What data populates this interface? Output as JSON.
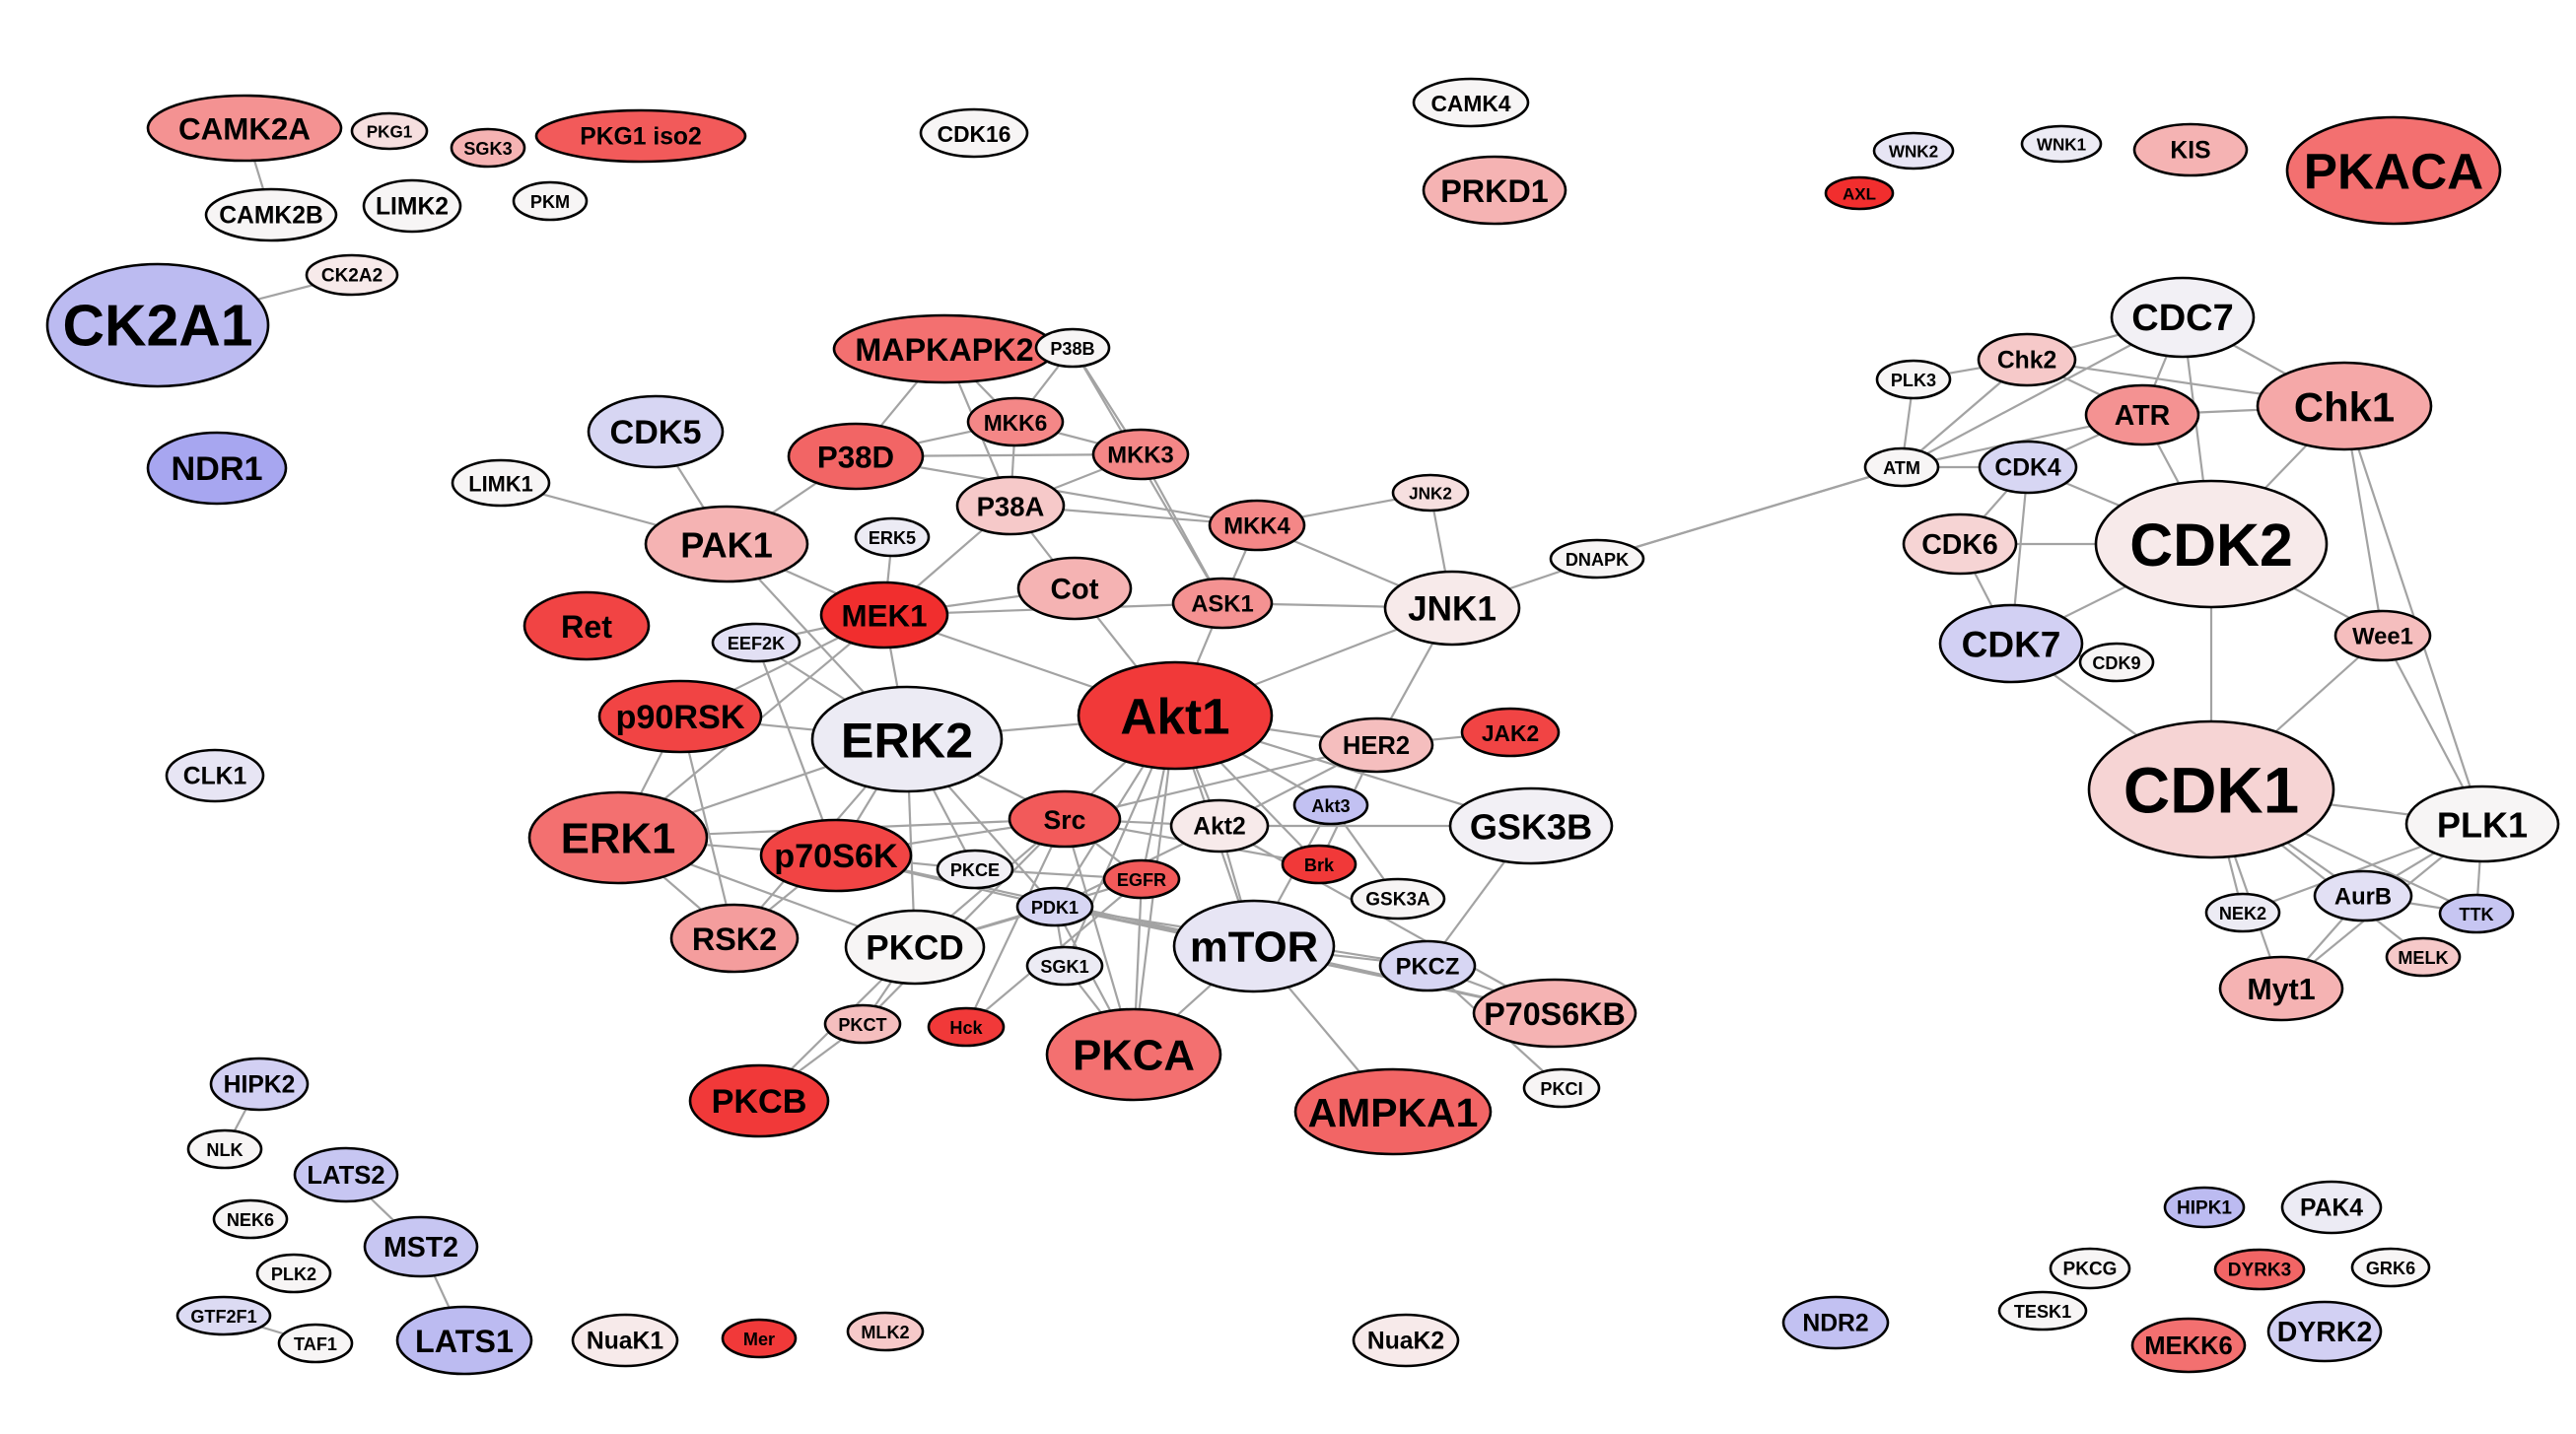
{
  "colors": {
    "background": "#ffffff",
    "edge": "#a3a3a3",
    "outline": "#000000",
    "high": "#f01818",
    "neutral": "#f7f5f5",
    "low": "#8c8cee"
  },
  "nodes": [
    {
      "id": "CAMK2A",
      "label": "CAMK2A",
      "w": 0.45
    },
    {
      "id": "PKG1",
      "label": "PKG1",
      "w": 0.1
    },
    {
      "id": "SGK3",
      "label": "SGK3",
      "w": 0.3
    },
    {
      "id": "PKG1iso2",
      "label": "PKG1 iso2",
      "w": 0.7
    },
    {
      "id": "CDK16",
      "label": "CDK16",
      "w": 0.0
    },
    {
      "id": "CAMK4",
      "label": "CAMK4",
      "w": 0.0
    },
    {
      "id": "PRKD1",
      "label": "PRKD1",
      "w": 0.3
    },
    {
      "id": "WNK2",
      "label": "WNK2",
      "w": -0.15
    },
    {
      "id": "WNK1",
      "label": "WNK1",
      "w": -0.1
    },
    {
      "id": "KIS",
      "label": "KIS",
      "w": 0.3
    },
    {
      "id": "PKACA",
      "label": "PKACA",
      "w": 0.6
    },
    {
      "id": "AXL",
      "label": "AXL",
      "w": 0.9
    },
    {
      "id": "CAMK2B",
      "label": "CAMK2B",
      "w": 0.0
    },
    {
      "id": "LIMK2",
      "label": "LIMK2",
      "w": 0.0
    },
    {
      "id": "PKM",
      "label": "PKM",
      "w": 0.0
    },
    {
      "id": "CK2A2",
      "label": "CK2A2",
      "w": 0.05
    },
    {
      "id": "CK2A1",
      "label": "CK2A1",
      "w": -0.55
    },
    {
      "id": "NDR1",
      "label": "NDR1",
      "w": -0.75
    },
    {
      "id": "CDK5",
      "label": "CDK5",
      "w": -0.3
    },
    {
      "id": "LIMK1",
      "label": "LIMK1",
      "w": 0.0
    },
    {
      "id": "MAPKAPK2",
      "label": "MAPKAPK2",
      "w": 0.6
    },
    {
      "id": "P38B",
      "label": "P38B",
      "w": 0.0
    },
    {
      "id": "MKK6",
      "label": "MKK6",
      "w": 0.5
    },
    {
      "id": "P38D",
      "label": "P38D",
      "w": 0.65
    },
    {
      "id": "MKK3",
      "label": "MKK3",
      "w": 0.5
    },
    {
      "id": "P38A",
      "label": "P38A",
      "w": 0.2
    },
    {
      "id": "MKK4",
      "label": "MKK4",
      "w": 0.5
    },
    {
      "id": "JNK2",
      "label": "JNK2",
      "w": 0.1
    },
    {
      "id": "PAK1",
      "label": "PAK1",
      "w": 0.3
    },
    {
      "id": "ERK5",
      "label": "ERK5",
      "w": -0.1
    },
    {
      "id": "Cot",
      "label": "Cot",
      "w": 0.3
    },
    {
      "id": "ASK1",
      "label": "ASK1",
      "w": 0.45
    },
    {
      "id": "JNK1",
      "label": "JNK1",
      "w": 0.05
    },
    {
      "id": "DNAPK",
      "label": "DNAPK",
      "w": 0.0
    },
    {
      "id": "Ret",
      "label": "Ret",
      "w": 0.8
    },
    {
      "id": "MEK1",
      "label": "MEK1",
      "w": 0.9
    },
    {
      "id": "EEF2K",
      "label": "EEF2K",
      "w": -0.2
    },
    {
      "id": "p90RSK",
      "label": "p90RSK",
      "w": 0.8
    },
    {
      "id": "ERK2",
      "label": "ERK2",
      "w": -0.1
    },
    {
      "id": "Akt1",
      "label": "Akt1",
      "w": 0.85
    },
    {
      "id": "HER2",
      "label": "HER2",
      "w": 0.25
    },
    {
      "id": "JAK2",
      "label": "JAK2",
      "w": 0.8
    },
    {
      "id": "ERK1",
      "label": "ERK1",
      "w": 0.6
    },
    {
      "id": "p70S6K",
      "label": "p70S6K",
      "w": 0.8
    },
    {
      "id": "Src",
      "label": "Src",
      "w": 0.7
    },
    {
      "id": "Akt2",
      "label": "Akt2",
      "w": 0.05
    },
    {
      "id": "Akt3",
      "label": "Akt3",
      "w": -0.5
    },
    {
      "id": "GSK3B",
      "label": "GSK3B",
      "w": -0.05
    },
    {
      "id": "PKCE",
      "label": "PKCE",
      "w": -0.05
    },
    {
      "id": "EGFR",
      "label": "EGFR",
      "w": 0.7
    },
    {
      "id": "Brk",
      "label": "Brk",
      "w": 0.85
    },
    {
      "id": "PDK1",
      "label": "PDK1",
      "w": -0.3
    },
    {
      "id": "GSK3A",
      "label": "GSK3A",
      "w": 0.0
    },
    {
      "id": "RSK2",
      "label": "RSK2",
      "w": 0.4
    },
    {
      "id": "PKCD",
      "label": "PKCD",
      "w": 0.0
    },
    {
      "id": "mTOR",
      "label": "mTOR",
      "w": -0.15
    },
    {
      "id": "SGK1",
      "label": "SGK1",
      "w": -0.1
    },
    {
      "id": "PKCZ",
      "label": "PKCZ",
      "w": -0.3
    },
    {
      "id": "P70S6KB",
      "label": "P70S6KB",
      "w": 0.3
    },
    {
      "id": "PKCT",
      "label": "PKCT",
      "w": 0.25
    },
    {
      "id": "Hck",
      "label": "Hck",
      "w": 0.85
    },
    {
      "id": "PKCA",
      "label": "PKCA",
      "w": 0.6
    },
    {
      "id": "PKCI",
      "label": "PKCI",
      "w": 0.0
    },
    {
      "id": "PKCB",
      "label": "PKCB",
      "w": 0.85
    },
    {
      "id": "AMPKA1",
      "label": "AMPKA1",
      "w": 0.65
    },
    {
      "id": "CDC7",
      "label": "CDC7",
      "w": -0.05
    },
    {
      "id": "PLK3",
      "label": "PLK3",
      "w": 0.0
    },
    {
      "id": "Chk2",
      "label": "Chk2",
      "w": 0.2
    },
    {
      "id": "ATR",
      "label": "ATR",
      "w": 0.45
    },
    {
      "id": "Chk1",
      "label": "Chk1",
      "w": 0.35
    },
    {
      "id": "ATM",
      "label": "ATM",
      "w": 0.0
    },
    {
      "id": "CDK4",
      "label": "CDK4",
      "w": -0.3
    },
    {
      "id": "CDK6",
      "label": "CDK6",
      "w": 0.15
    },
    {
      "id": "CDK2",
      "label": "CDK2",
      "w": 0.05
    },
    {
      "id": "CDK7",
      "label": "CDK7",
      "w": -0.35
    },
    {
      "id": "CDK9",
      "label": "CDK9",
      "w": 0.0
    },
    {
      "id": "Wee1",
      "label": "Wee1",
      "w": 0.25
    },
    {
      "id": "CDK1",
      "label": "CDK1",
      "w": 0.15
    },
    {
      "id": "PLK1",
      "label": "PLK1",
      "w": 0.0
    },
    {
      "id": "NEK2",
      "label": "NEK2",
      "w": -0.1
    },
    {
      "id": "AurB",
      "label": "AurB",
      "w": -0.2
    },
    {
      "id": "TTK",
      "label": "TTK",
      "w": -0.45
    },
    {
      "id": "MELK",
      "label": "MELK",
      "w": 0.2
    },
    {
      "id": "Myt1",
      "label": "Myt1",
      "w": 0.3
    },
    {
      "id": "CLK1",
      "label": "CLK1",
      "w": -0.15
    },
    {
      "id": "HIPK2",
      "label": "HIPK2",
      "w": -0.35
    },
    {
      "id": "NLK",
      "label": "NLK",
      "w": 0.0
    },
    {
      "id": "LATS2",
      "label": "LATS2",
      "w": -0.45
    },
    {
      "id": "NEK6",
      "label": "NEK6",
      "w": 0.0
    },
    {
      "id": "MST2",
      "label": "MST2",
      "w": -0.45
    },
    {
      "id": "PLK2",
      "label": "PLK2",
      "w": 0.0
    },
    {
      "id": "GTF2F1",
      "label": "GTF2F1",
      "w": -0.25
    },
    {
      "id": "TAF1",
      "label": "TAF1",
      "w": 0.0
    },
    {
      "id": "LATS1",
      "label": "LATS1",
      "w": -0.55
    },
    {
      "id": "NuaK1",
      "label": "NuaK1",
      "w": 0.05
    },
    {
      "id": "Mer",
      "label": "Mer",
      "w": 0.85
    },
    {
      "id": "MLK2",
      "label": "MLK2",
      "w": 0.2
    },
    {
      "id": "NuaK2",
      "label": "NuaK2",
      "w": 0.05
    },
    {
      "id": "NDR2",
      "label": "NDR2",
      "w": -0.5
    },
    {
      "id": "HIPK1",
      "label": "HIPK1",
      "w": -0.55
    },
    {
      "id": "PAK4",
      "label": "PAK4",
      "w": -0.1
    },
    {
      "id": "PKCG",
      "label": "PKCG",
      "w": 0.0
    },
    {
      "id": "DYRK3",
      "label": "DYRK3",
      "w": 0.65
    },
    {
      "id": "GRK6",
      "label": "GRK6",
      "w": 0.0
    },
    {
      "id": "TESK1",
      "label": "TESK1",
      "w": 0.0
    },
    {
      "id": "MEKK6",
      "label": "MEKK6",
      "w": 0.6
    },
    {
      "id": "DYRK2",
      "label": "DYRK2",
      "w": -0.35
    }
  ],
  "edges": [
    [
      "CAMK2A",
      "CAMK2B"
    ],
    [
      "CK2A2",
      "CK2A1"
    ],
    [
      "MAPKAPK2",
      "P38D"
    ],
    [
      "MAPKAPK2",
      "P38A"
    ],
    [
      "MAPKAPK2",
      "MKK6"
    ],
    [
      "P38B",
      "MKK6"
    ],
    [
      "P38B",
      "MKK3"
    ],
    [
      "P38B",
      "ASK1"
    ],
    [
      "MKK6",
      "P38D"
    ],
    [
      "MKK6",
      "P38A"
    ],
    [
      "MKK6",
      "MKK3"
    ],
    [
      "MKK3",
      "P38D"
    ],
    [
      "MKK3",
      "P38A"
    ],
    [
      "MKK3",
      "ASK1"
    ],
    [
      "P38D",
      "MKK4"
    ],
    [
      "P38A",
      "MKK4"
    ],
    [
      "P38A",
      "MEK1"
    ],
    [
      "P38A",
      "Cot"
    ],
    [
      "MKK4",
      "JNK2"
    ],
    [
      "MKK4",
      "JNK1"
    ],
    [
      "MKK4",
      "ASK1"
    ],
    [
      "JNK2",
      "JNK1"
    ],
    [
      "ASK1",
      "Akt1"
    ],
    [
      "ASK1",
      "JNK1"
    ],
    [
      "ASK1",
      "MEK1"
    ],
    [
      "Cot",
      "MEK1"
    ],
    [
      "Cot",
      "Akt1"
    ],
    [
      "LIMK1",
      "PAK1"
    ],
    [
      "CDK5",
      "PAK1"
    ],
    [
      "PAK1",
      "MEK1"
    ],
    [
      "PAK1",
      "ERK2"
    ],
    [
      "PAK1",
      "P38D"
    ],
    [
      "MEK1",
      "ERK2"
    ],
    [
      "MEK1",
      "ERK1"
    ],
    [
      "MEK1",
      "ERK5"
    ],
    [
      "MEK1",
      "Akt1"
    ],
    [
      "EEF2K",
      "ERK2"
    ],
    [
      "EEF2K",
      "p70S6K"
    ],
    [
      "EEF2K",
      "MEK1"
    ],
    [
      "p90RSK",
      "ERK2"
    ],
    [
      "p90RSK",
      "ERK1"
    ],
    [
      "p90RSK",
      "RSK2"
    ],
    [
      "p90RSK",
      "MEK1"
    ],
    [
      "ERK2",
      "ERK1"
    ],
    [
      "ERK2",
      "RSK2"
    ],
    [
      "ERK2",
      "p70S6K"
    ],
    [
      "ERK2",
      "Src"
    ],
    [
      "ERK2",
      "PKCE"
    ],
    [
      "ERK2",
      "Akt1"
    ],
    [
      "ERK2",
      "PDK1"
    ],
    [
      "ERK2",
      "PKCD"
    ],
    [
      "ERK1",
      "RSK2"
    ],
    [
      "ERK1",
      "p70S6K"
    ],
    [
      "ERK1",
      "Src"
    ],
    [
      "ERK1",
      "PKCD"
    ],
    [
      "Akt1",
      "Src"
    ],
    [
      "Akt1",
      "Akt2"
    ],
    [
      "Akt1",
      "mTOR"
    ],
    [
      "Akt1",
      "HER2"
    ],
    [
      "Akt1",
      "JNK1"
    ],
    [
      "Akt1",
      "GSK3B"
    ],
    [
      "Akt1",
      "EGFR"
    ],
    [
      "Akt1",
      "PDK1"
    ],
    [
      "Akt1",
      "Akt3"
    ],
    [
      "Akt1",
      "PKCA"
    ],
    [
      "Akt1",
      "Brk"
    ],
    [
      "Akt1",
      "SGK1"
    ],
    [
      "HER2",
      "JNK1"
    ],
    [
      "HER2",
      "Src"
    ],
    [
      "HER2",
      "Brk"
    ],
    [
      "HER2",
      "JAK2"
    ],
    [
      "HER2",
      "Akt2"
    ],
    [
      "Src",
      "EGFR"
    ],
    [
      "Src",
      "p70S6K"
    ],
    [
      "Src",
      "PKCD"
    ],
    [
      "Src",
      "Akt2"
    ],
    [
      "Src",
      "PKCA"
    ],
    [
      "Src",
      "Hck"
    ],
    [
      "Src",
      "PKCT"
    ],
    [
      "Src",
      "Brk"
    ],
    [
      "p70S6K",
      "PDK1"
    ],
    [
      "p70S6K",
      "mTOR"
    ],
    [
      "p70S6K",
      "PKCE"
    ],
    [
      "p70S6K",
      "RSK2"
    ],
    [
      "PDK1",
      "mTOR"
    ],
    [
      "PDK1",
      "SGK1"
    ],
    [
      "PDK1",
      "PKCZ"
    ],
    [
      "PDK1",
      "Akt2"
    ],
    [
      "PDK1",
      "PKCA"
    ],
    [
      "PDK1",
      "PKCD"
    ],
    [
      "PDK1",
      "P70S6KB"
    ],
    [
      "mTOR",
      "Akt2"
    ],
    [
      "mTOR",
      "PKCA"
    ],
    [
      "mTOR",
      "AMPKA1"
    ],
    [
      "mTOR",
      "PKCZ"
    ],
    [
      "mTOR",
      "P70S6KB"
    ],
    [
      "mTOR",
      "Akt3"
    ],
    [
      "GSK3B",
      "PKCZ"
    ],
    [
      "GSK3B",
      "Akt2"
    ],
    [
      "Akt3",
      "GSK3A"
    ],
    [
      "PKCZ",
      "P70S6KB"
    ],
    [
      "PKCZ",
      "PKCI"
    ],
    [
      "PKCD",
      "PKCT"
    ],
    [
      "PKCD",
      "PKCB"
    ],
    [
      "PKCD",
      "EGFR"
    ],
    [
      "PKCE",
      "EGFR"
    ],
    [
      "PKCT",
      "PKCB"
    ],
    [
      "EGFR",
      "PKCA"
    ],
    [
      "EGFR",
      "Hck"
    ],
    [
      "SGK1",
      "PKCA"
    ],
    [
      "Akt2",
      "P70S6KB"
    ],
    [
      "DNAPK",
      "JNK1"
    ],
    [
      "DNAPK",
      "ATM"
    ],
    [
      "DNAPK",
      "ATM"
    ],
    [
      "ATM",
      "Chk2"
    ],
    [
      "ATM",
      "ATR"
    ],
    [
      "ATM",
      "CDC7"
    ],
    [
      "ATM",
      "PLK3"
    ],
    [
      "ATM",
      "CDK4"
    ],
    [
      "CDC7",
      "Chk2"
    ],
    [
      "CDC7",
      "Chk1"
    ],
    [
      "CDC7",
      "ATR"
    ],
    [
      "CDC7",
      "CDK2"
    ],
    [
      "Chk2",
      "PLK3"
    ],
    [
      "Chk2",
      "ATR"
    ],
    [
      "Chk2",
      "Chk1"
    ],
    [
      "ATR",
      "Chk1"
    ],
    [
      "ATR",
      "CDK2"
    ],
    [
      "ATR",
      "CDK4"
    ],
    [
      "Chk1",
      "CDK2"
    ],
    [
      "Chk1",
      "Wee1"
    ],
    [
      "Chk1",
      "PLK1"
    ],
    [
      "CDK4",
      "CDK6"
    ],
    [
      "CDK4",
      "CDK2"
    ],
    [
      "CDK4",
      "CDK7"
    ],
    [
      "CDK6",
      "CDK2"
    ],
    [
      "CDK6",
      "CDK7"
    ],
    [
      "CDK2",
      "CDK7"
    ],
    [
      "CDK2",
      "CDK1"
    ],
    [
      "CDK2",
      "Wee1"
    ],
    [
      "CDK7",
      "CDK9"
    ],
    [
      "CDK7",
      "CDK1"
    ],
    [
      "Wee1",
      "CDK1"
    ],
    [
      "Wee1",
      "PLK1"
    ],
    [
      "CDK1",
      "PLK1"
    ],
    [
      "CDK1",
      "NEK2"
    ],
    [
      "CDK1",
      "AurB"
    ],
    [
      "CDK1",
      "TTK"
    ],
    [
      "CDK1",
      "Myt1"
    ],
    [
      "CDK1",
      "MELK"
    ],
    [
      "PLK1",
      "AurB"
    ],
    [
      "PLK1",
      "TTK"
    ],
    [
      "PLK1",
      "Myt1"
    ],
    [
      "PLK1",
      "NEK2"
    ],
    [
      "AurB",
      "Myt1"
    ],
    [
      "AurB",
      "TTK"
    ],
    [
      "HIPK2",
      "NLK"
    ],
    [
      "LATS2",
      "MST2"
    ],
    [
      "MST2",
      "LATS1"
    ],
    [
      "GTF2F1",
      "TAF1"
    ]
  ]
}
